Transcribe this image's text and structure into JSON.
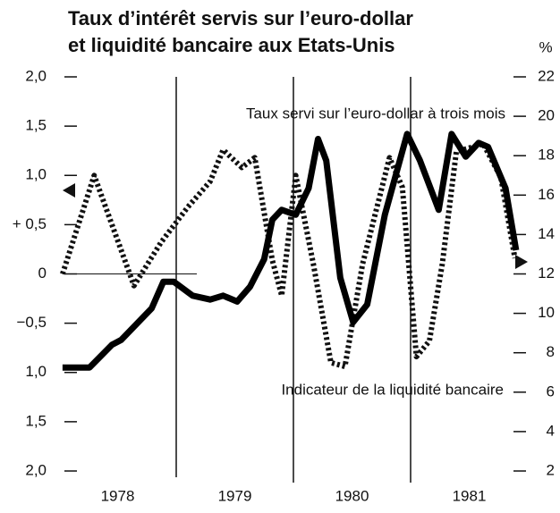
{
  "chart_data": {
    "type": "line",
    "title": [
      "Taux d’intérêt servis sur l’euro-dollar",
      "et liquidité bancaire aux Etats-Unis"
    ],
    "y2_label": "%",
    "annotations": [
      "Taux servi sur l’euro-dollar à trois mois",
      "Indicateur de la liquidité bancaire"
    ],
    "xlim": [
      1978,
      1982
    ],
    "xticks": [
      {
        "value": 1978.5,
        "label": "1978"
      },
      {
        "value": 1979.5,
        "label": "1979"
      },
      {
        "value": 1980.5,
        "label": "1980"
      },
      {
        "value": 1981.5,
        "label": "1981"
      }
    ],
    "ylim": [
      -2,
      2
    ],
    "yticks": [
      {
        "value": 2,
        "label": "2,0"
      },
      {
        "value": 1.5,
        "label": "1,5"
      },
      {
        "value": 1,
        "label": "1,0"
      },
      {
        "value": 0.5,
        "label": "+ 0,5"
      },
      0,
      {
        "value": -0.5,
        "label": "−0,5"
      },
      {
        "value": -1,
        "label": "1,0"
      },
      {
        "value": -1.5,
        "label": "1,5"
      },
      {
        "value": -2,
        "label": "2,0"
      }
    ],
    "y2lim": [
      2,
      22
    ],
    "y2ticks": [
      22,
      20,
      18,
      16,
      14,
      12,
      10,
      8,
      6,
      4,
      2
    ],
    "series": [
      {
        "name": "Taux servi sur l’euro-dollar à trois mois",
        "color": "#111",
        "line_style": "dotted",
        "axis": "y2",
        "x": [
          1978.03,
          1978.3,
          1978.64,
          1978.87,
          1979.1,
          1979.29,
          1979.4,
          1979.56,
          1979.67,
          1979.82,
          1979.9,
          1980.02,
          1980.17,
          1980.32,
          1980.44,
          1980.59,
          1980.82,
          1980.93,
          1981.05,
          1981.16,
          1981.27,
          1981.39,
          1981.62,
          1981.77,
          1981.89
        ],
        "values": [
          12.0,
          17.0,
          11.4,
          13.6,
          15.4,
          16.7,
          18.3,
          17.4,
          17.9,
          12.7,
          10.9,
          17.0,
          12.5,
          7.5,
          7.3,
          12.5,
          17.9,
          16.4,
          7.8,
          8.6,
          12.5,
          18.2,
          18.6,
          16.9,
          12.8
        ]
      },
      {
        "name": "Indicateur de la liquidité bancaire",
        "color": "#000",
        "line_style": "solid",
        "x": [
          1978.03,
          1978.26,
          1978.45,
          1978.53,
          1978.79,
          1978.89,
          1978.98,
          1979.14,
          1979.29,
          1979.4,
          1979.52,
          1979.63,
          1979.75,
          1979.82,
          1979.9,
          1980.02,
          1980.13,
          1980.21,
          1980.28,
          1980.4,
          1980.51,
          1980.63,
          1980.78,
          1980.97,
          1981.08,
          1981.24,
          1981.35,
          1981.47,
          1981.58,
          1981.66,
          1981.81,
          1981.9
        ],
        "values": [
          -0.95,
          -0.95,
          -0.72,
          -0.67,
          -0.35,
          -0.08,
          -0.08,
          -0.22,
          -0.26,
          -0.22,
          -0.28,
          -0.13,
          0.15,
          0.55,
          0.65,
          0.6,
          0.87,
          1.37,
          1.15,
          -0.04,
          -0.49,
          -0.31,
          0.6,
          1.42,
          1.15,
          0.65,
          1.42,
          1.19,
          1.33,
          1.29,
          0.87,
          0.24
        ]
      }
    ]
  }
}
